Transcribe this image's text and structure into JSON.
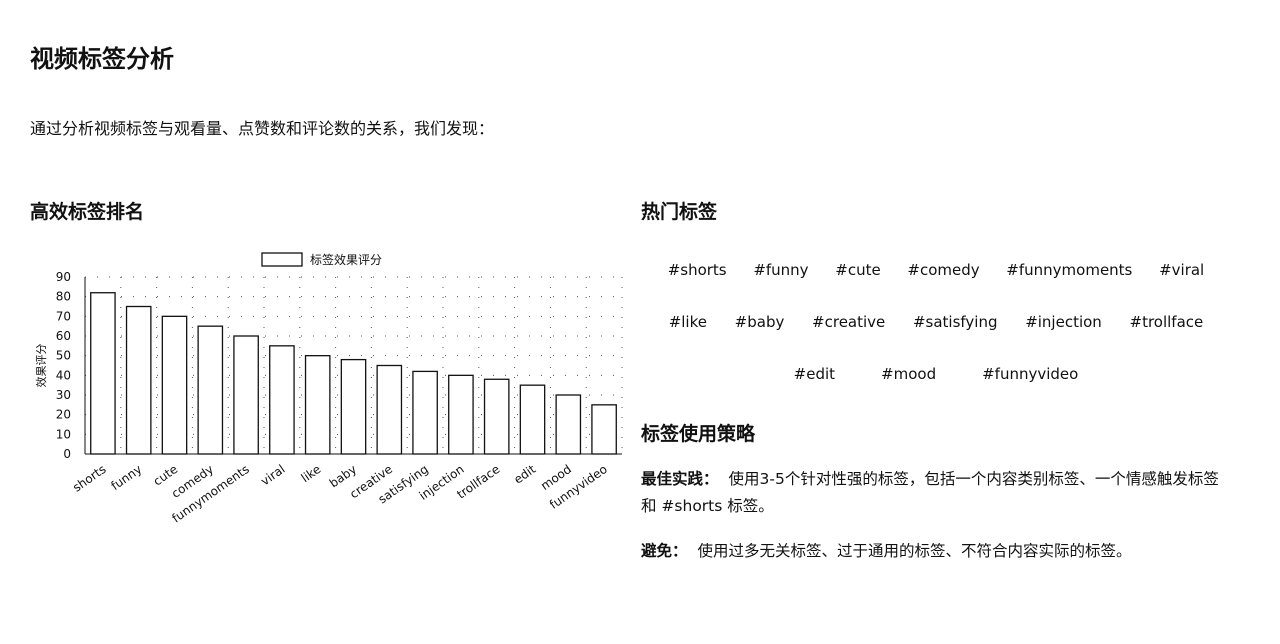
{
  "page": {
    "title": "视频标签分析",
    "intro": "通过分析视频标签与观看量、点赞数和评论数的关系，我们发现："
  },
  "chart_section": {
    "title": "高效标签排名"
  },
  "chart_data": {
    "type": "bar",
    "categories": [
      "shorts",
      "funny",
      "cute",
      "comedy",
      "funnymoments",
      "viral",
      "like",
      "baby",
      "creative",
      "satisfying",
      "injection",
      "trollface",
      "edit",
      "mood",
      "funnyvideo"
    ],
    "series": [
      {
        "name": "标签效果评分",
        "values": [
          82,
          75,
          70,
          65,
          60,
          55,
          50,
          48,
          45,
          42,
          40,
          38,
          35,
          30,
          25
        ]
      }
    ],
    "title": "",
    "xlabel": "",
    "ylabel": "效果评分",
    "ylim": [
      0,
      90
    ],
    "yticks": [
      "0",
      "10",
      "20",
      "30",
      "40",
      "50",
      "60",
      "70",
      "80",
      "90"
    ],
    "grid": true,
    "legend_position": "top",
    "bar_fill": "#ffffff",
    "bar_stroke": "#111111"
  },
  "tags_section": {
    "title": "热门标签",
    "rows": [
      [
        "#shorts",
        "#funny",
        "#cute",
        "#comedy",
        "#funnymoments",
        "#viral"
      ],
      [
        "#like",
        "#baby",
        "#creative",
        "#satisfying",
        "#injection",
        "#trollface"
      ],
      [
        "#edit",
        "#mood",
        "#funnyvideo"
      ]
    ]
  },
  "strategy_section": {
    "title": "标签使用策略",
    "best_label": "最佳实践：",
    "best_text": "使用3-5个针对性强的标签，包括一个内容类别标签、一个情感触发标签和 #shorts 标签。",
    "avoid_label": "避免：",
    "avoid_text": "使用过多无关标签、过于通用的标签、不符合内容实际的标签。"
  }
}
